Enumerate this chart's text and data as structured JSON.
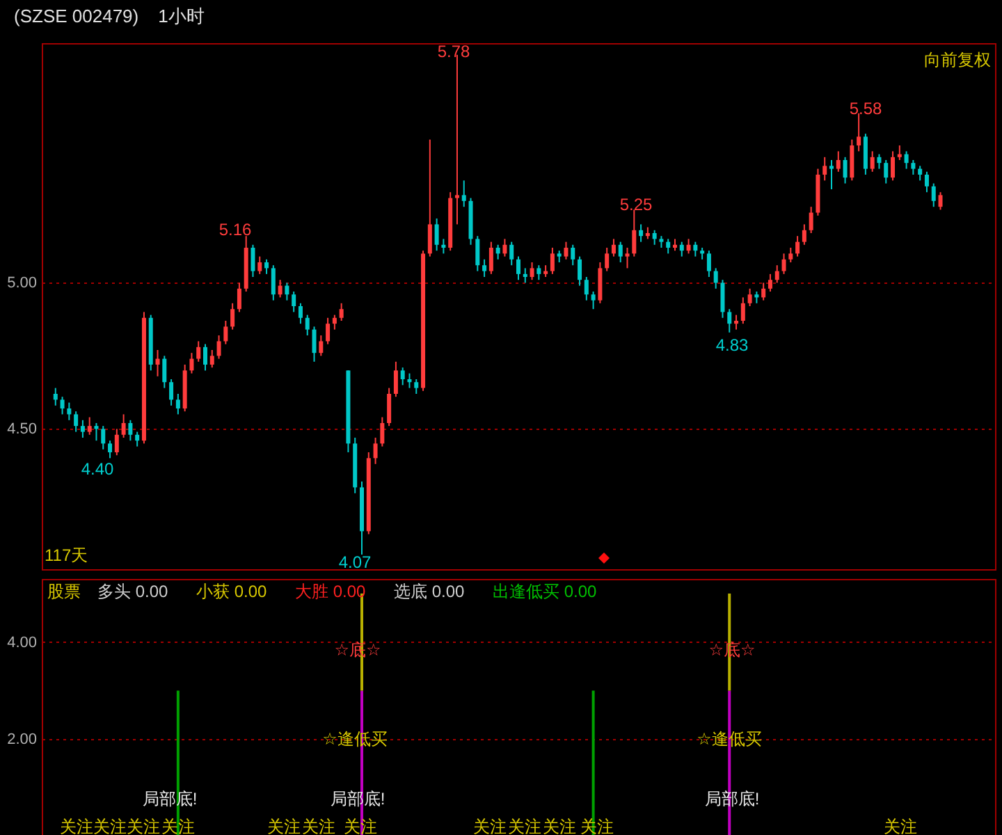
{
  "chart_data": [
    {
      "type": "candlestick",
      "title": "(SZSE 002479)",
      "subtitle": "1小时",
      "categories": [
        null,
        null,
        null,
        null,
        null,
        null,
        null,
        null,
        null,
        null,
        null,
        null,
        null,
        null,
        null,
        null,
        null,
        null,
        null,
        null,
        null,
        null,
        null,
        null,
        null,
        null,
        null,
        null,
        null,
        null,
        null,
        null,
        null,
        null,
        null,
        null,
        null,
        null,
        null,
        null,
        null,
        null,
        null,
        null,
        null,
        null,
        null,
        null,
        null,
        null,
        null,
        null,
        null,
        null,
        null,
        null,
        null,
        null,
        null,
        null,
        null,
        null,
        null,
        null,
        null,
        null,
        null,
        null,
        null,
        null,
        null,
        null,
        null,
        null,
        null,
        null,
        null,
        null,
        null,
        null,
        null,
        null,
        null,
        null,
        null,
        null,
        null,
        null,
        null,
        null,
        null,
        null,
        null,
        null,
        null,
        null,
        null,
        null,
        null,
        null,
        null,
        null,
        null,
        null,
        null,
        null,
        null,
        null,
        null,
        null,
        null,
        null,
        null,
        null,
        null,
        null,
        null,
        null,
        null,
        null,
        null,
        null,
        null,
        null,
        null,
        null,
        null,
        null,
        null,
        null,
        null
      ],
      "ohlc": [
        [
          4.62,
          4.64,
          4.58,
          4.6
        ],
        [
          4.6,
          4.61,
          4.55,
          4.57
        ],
        [
          4.57,
          4.59,
          4.53,
          4.55
        ],
        [
          4.55,
          4.56,
          4.49,
          4.51
        ],
        [
          4.51,
          4.53,
          4.47,
          4.49
        ],
        [
          4.49,
          4.54,
          4.48,
          4.51
        ],
        [
          4.51,
          4.52,
          4.46,
          4.5
        ],
        [
          4.5,
          4.51,
          4.43,
          4.45
        ],
        [
          4.45,
          4.46,
          4.4,
          4.42
        ],
        [
          4.42,
          4.5,
          4.41,
          4.48
        ],
        [
          4.48,
          4.55,
          4.47,
          4.52
        ],
        [
          4.52,
          4.53,
          4.46,
          4.48
        ],
        [
          4.48,
          4.49,
          4.44,
          4.46
        ],
        [
          4.46,
          4.9,
          4.45,
          4.88
        ],
        [
          4.88,
          4.89,
          4.7,
          4.72
        ],
        [
          4.72,
          4.77,
          4.68,
          4.74
        ],
        [
          4.74,
          4.75,
          4.64,
          4.66
        ],
        [
          4.66,
          4.67,
          4.58,
          4.6
        ],
        [
          4.6,
          4.62,
          4.55,
          4.57
        ],
        [
          4.57,
          4.72,
          4.56,
          4.7
        ],
        [
          4.7,
          4.76,
          4.69,
          4.74
        ],
        [
          4.74,
          4.8,
          4.73,
          4.78
        ],
        [
          4.78,
          4.79,
          4.7,
          4.72
        ],
        [
          4.72,
          4.77,
          4.71,
          4.75
        ],
        [
          4.75,
          4.82,
          4.74,
          4.8
        ],
        [
          4.8,
          4.87,
          4.79,
          4.85
        ],
        [
          4.85,
          4.93,
          4.84,
          4.91
        ],
        [
          4.91,
          5.0,
          4.9,
          4.98
        ],
        [
          4.98,
          5.16,
          4.97,
          5.12
        ],
        [
          5.12,
          5.13,
          5.02,
          5.04
        ],
        [
          5.04,
          5.09,
          5.03,
          5.07
        ],
        [
          5.07,
          5.08,
          5.03,
          5.05
        ],
        [
          5.05,
          5.06,
          4.94,
          4.96
        ],
        [
          4.96,
          5.01,
          4.95,
          4.99
        ],
        [
          4.99,
          5.0,
          4.94,
          4.96
        ],
        [
          4.96,
          4.97,
          4.9,
          4.92
        ],
        [
          4.92,
          4.93,
          4.86,
          4.88
        ],
        [
          4.88,
          4.89,
          4.82,
          4.84
        ],
        [
          4.84,
          4.85,
          4.73,
          4.76
        ],
        [
          4.76,
          4.82,
          4.75,
          4.8
        ],
        [
          4.8,
          4.88,
          4.79,
          4.86
        ],
        [
          4.86,
          4.89,
          4.84,
          4.88
        ],
        [
          4.88,
          4.93,
          4.87,
          4.91
        ],
        [
          4.7,
          4.7,
          4.42,
          4.45
        ],
        [
          4.45,
          4.47,
          4.28,
          4.3
        ],
        [
          4.3,
          4.32,
          4.07,
          4.15
        ],
        [
          4.15,
          4.42,
          4.14,
          4.4
        ],
        [
          4.4,
          4.47,
          4.38,
          4.45
        ],
        [
          4.45,
          4.54,
          4.44,
          4.52
        ],
        [
          4.52,
          4.64,
          4.51,
          4.62
        ],
        [
          4.62,
          4.73,
          4.61,
          4.7
        ],
        [
          4.7,
          4.71,
          4.65,
          4.67
        ],
        [
          4.67,
          4.69,
          4.64,
          4.66
        ],
        [
          4.66,
          4.67,
          4.62,
          4.64
        ],
        [
          4.64,
          5.11,
          4.63,
          5.1
        ],
        [
          5.1,
          5.49,
          5.09,
          5.2
        ],
        [
          5.2,
          5.22,
          5.11,
          5.13
        ],
        [
          5.13,
          5.15,
          5.1,
          5.12
        ],
        [
          5.12,
          5.31,
          5.11,
          5.29
        ],
        [
          5.29,
          5.78,
          5.2,
          5.3
        ],
        [
          5.3,
          5.35,
          5.26,
          5.28
        ],
        [
          5.28,
          5.29,
          5.13,
          5.15
        ],
        [
          5.15,
          5.16,
          5.04,
          5.06
        ],
        [
          5.06,
          5.08,
          5.02,
          5.04
        ],
        [
          5.04,
          5.14,
          5.03,
          5.12
        ],
        [
          5.12,
          5.13,
          5.08,
          5.1
        ],
        [
          5.1,
          5.15,
          5.09,
          5.13
        ],
        [
          5.13,
          5.14,
          5.06,
          5.08
        ],
        [
          5.08,
          5.09,
          5.01,
          5.03
        ],
        [
          5.03,
          5.05,
          5.0,
          5.02
        ],
        [
          5.02,
          5.07,
          5.01,
          5.05
        ],
        [
          5.05,
          5.06,
          5.01,
          5.03
        ],
        [
          5.03,
          5.06,
          5.02,
          5.04
        ],
        [
          5.04,
          5.12,
          5.03,
          5.1
        ],
        [
          5.1,
          5.11,
          5.07,
          5.09
        ],
        [
          5.09,
          5.14,
          5.08,
          5.12
        ],
        [
          5.12,
          5.13,
          5.06,
          5.08
        ],
        [
          5.08,
          5.09,
          4.99,
          5.01
        ],
        [
          5.01,
          5.02,
          4.94,
          4.96
        ],
        [
          4.96,
          4.97,
          4.91,
          4.94
        ],
        [
          4.94,
          5.07,
          4.93,
          5.05
        ],
        [
          5.05,
          5.12,
          5.04,
          5.1
        ],
        [
          5.1,
          5.15,
          5.09,
          5.13
        ],
        [
          5.13,
          5.14,
          5.07,
          5.09
        ],
        [
          5.09,
          5.12,
          5.05,
          5.1
        ],
        [
          5.1,
          5.25,
          5.09,
          5.18
        ],
        [
          5.18,
          5.2,
          5.14,
          5.16
        ],
        [
          5.16,
          5.19,
          5.15,
          5.17
        ],
        [
          5.17,
          5.18,
          5.13,
          5.15
        ],
        [
          5.15,
          5.16,
          5.12,
          5.14
        ],
        [
          5.14,
          5.15,
          5.1,
          5.12
        ],
        [
          5.12,
          5.15,
          5.11,
          5.13
        ],
        [
          5.13,
          5.14,
          5.09,
          5.11
        ],
        [
          5.11,
          5.15,
          5.1,
          5.13
        ],
        [
          5.13,
          5.14,
          5.09,
          5.11
        ],
        [
          5.11,
          5.12,
          5.08,
          5.1
        ],
        [
          5.1,
          5.11,
          5.02,
          5.04
        ],
        [
          5.04,
          5.05,
          4.98,
          5.0
        ],
        [
          5.0,
          5.01,
          4.88,
          4.9
        ],
        [
          4.9,
          4.91,
          4.83,
          4.86
        ],
        [
          4.86,
          4.89,
          4.84,
          4.87
        ],
        [
          4.87,
          4.95,
          4.86,
          4.93
        ],
        [
          4.93,
          4.98,
          4.92,
          4.96
        ],
        [
          4.96,
          4.97,
          4.93,
          4.95
        ],
        [
          4.95,
          5.0,
          4.94,
          4.98
        ],
        [
          4.98,
          5.03,
          4.97,
          5.01
        ],
        [
          5.01,
          5.06,
          5.0,
          5.04
        ],
        [
          5.04,
          5.1,
          5.03,
          5.08
        ],
        [
          5.08,
          5.12,
          5.07,
          5.1
        ],
        [
          5.1,
          5.16,
          5.09,
          5.14
        ],
        [
          5.14,
          5.2,
          5.13,
          5.18
        ],
        [
          5.18,
          5.26,
          5.17,
          5.24
        ],
        [
          5.24,
          5.39,
          5.23,
          5.37
        ],
        [
          5.37,
          5.43,
          5.35,
          5.4
        ],
        [
          5.4,
          5.42,
          5.32,
          5.39
        ],
        [
          5.39,
          5.45,
          5.38,
          5.42
        ],
        [
          5.42,
          5.43,
          5.34,
          5.36
        ],
        [
          5.36,
          5.49,
          5.35,
          5.47
        ],
        [
          5.47,
          5.58,
          5.45,
          5.5
        ],
        [
          5.5,
          5.51,
          5.37,
          5.39
        ],
        [
          5.39,
          5.45,
          5.38,
          5.43
        ],
        [
          5.43,
          5.44,
          5.39,
          5.41
        ],
        [
          5.41,
          5.42,
          5.34,
          5.36
        ],
        [
          5.36,
          5.45,
          5.35,
          5.43
        ],
        [
          5.43,
          5.47,
          5.42,
          5.44
        ],
        [
          5.44,
          5.45,
          5.39,
          5.41
        ],
        [
          5.41,
          5.42,
          5.37,
          5.39
        ],
        [
          5.39,
          5.4,
          5.35,
          5.37
        ],
        [
          5.37,
          5.38,
          5.31,
          5.33
        ],
        [
          5.33,
          5.34,
          5.26,
          5.28
        ],
        [
          5.26,
          5.31,
          5.25,
          5.3
        ]
      ],
      "ylim": [
        4.02,
        5.82
      ],
      "yticks": [
        {
          "value": 4.5,
          "label": "4.50"
        },
        {
          "value": 5,
          "label": "5.00"
        }
      ],
      "grid": "y",
      "tick_labels": "y",
      "annotations": [
        "117天",
        "向前复权",
        "4.40",
        "5.16",
        "4.07",
        "5.78",
        "5.25",
        "4.83",
        "5.58"
      ]
    },
    {
      "type": "bar",
      "stacked": true,
      "categories": [
        null,
        null,
        null,
        null,
        null,
        null,
        null,
        null,
        null,
        null,
        null,
        null,
        null,
        null,
        null,
        null,
        null,
        null,
        null,
        null,
        null,
        null,
        null,
        null,
        null,
        null,
        null,
        null,
        null,
        null,
        null,
        null,
        null,
        null,
        null,
        null,
        null,
        null,
        null,
        null,
        null,
        null,
        null,
        null,
        null,
        null,
        null,
        null,
        null,
        null,
        null,
        null,
        null,
        null,
        null,
        null,
        null,
        null,
        null,
        null,
        null,
        null,
        null,
        null,
        null,
        null,
        null,
        null,
        null,
        null,
        null,
        null,
        null,
        null,
        null,
        null,
        null,
        null,
        null,
        null,
        null,
        null,
        null,
        null,
        null,
        null,
        null,
        null,
        null,
        null,
        null,
        null,
        null,
        null,
        null,
        null,
        null,
        null,
        null,
        null,
        null,
        null,
        null,
        null,
        null,
        null,
        null,
        null,
        null,
        null,
        null,
        null,
        null,
        null,
        null,
        null,
        null,
        null,
        null,
        null,
        null,
        null,
        null,
        null,
        null,
        null,
        null,
        null,
        null,
        null,
        null
      ],
      "series": [
        {
          "color": "#00a000",
          "values": [
            null,
            null,
            null,
            null,
            null,
            null,
            null,
            null,
            null,
            null,
            null,
            null,
            null,
            null,
            null,
            null,
            null,
            null,
            3,
            null,
            null,
            null,
            null,
            null,
            null,
            null,
            null,
            null,
            null,
            null,
            null,
            null,
            null,
            null,
            null,
            null,
            null,
            null,
            null,
            null,
            null,
            null,
            null,
            null,
            null,
            null,
            null,
            null,
            null,
            null,
            null,
            null,
            null,
            null,
            null,
            null,
            null,
            null,
            null,
            null,
            null,
            null,
            null,
            null,
            null,
            null,
            null,
            null,
            null,
            null,
            null,
            null,
            null,
            null,
            null,
            null,
            null,
            null,
            null,
            3,
            null,
            null,
            null,
            null,
            null,
            null,
            null,
            null,
            null,
            null,
            null,
            null,
            null,
            null,
            null,
            null,
            null,
            null,
            null,
            null,
            null,
            null,
            null,
            null,
            null,
            null,
            null,
            null,
            null,
            null,
            null,
            null,
            null,
            null,
            null,
            null,
            null,
            null,
            null,
            null,
            null,
            null,
            null,
            null,
            null,
            null,
            null,
            null,
            null,
            null,
            null
          ]
        },
        {
          "color": "#c000c0",
          "values": [
            null,
            null,
            null,
            null,
            null,
            null,
            null,
            null,
            null,
            null,
            null,
            null,
            null,
            null,
            null,
            null,
            null,
            null,
            null,
            null,
            null,
            null,
            null,
            null,
            null,
            null,
            null,
            null,
            null,
            null,
            null,
            null,
            null,
            null,
            null,
            null,
            null,
            null,
            null,
            null,
            null,
            null,
            null,
            null,
            null,
            3,
            null,
            null,
            null,
            null,
            null,
            null,
            null,
            null,
            null,
            null,
            null,
            null,
            null,
            null,
            null,
            null,
            null,
            null,
            null,
            null,
            null,
            null,
            null,
            null,
            null,
            null,
            null,
            null,
            null,
            null,
            null,
            null,
            null,
            null,
            null,
            null,
            null,
            null,
            null,
            null,
            null,
            null,
            null,
            null,
            null,
            null,
            null,
            null,
            null,
            null,
            null,
            null,
            null,
            3,
            null,
            null,
            null,
            null,
            null,
            null,
            null,
            null,
            null,
            null,
            null,
            null,
            null,
            null,
            null,
            null,
            null,
            null,
            null,
            null,
            null,
            null,
            null,
            null,
            null,
            null,
            null,
            null,
            null,
            null,
            null
          ]
        },
        {
          "color": "#b8b000",
          "values": [
            null,
            null,
            null,
            null,
            null,
            null,
            null,
            null,
            null,
            null,
            null,
            null,
            null,
            null,
            null,
            null,
            null,
            null,
            null,
            null,
            null,
            null,
            null,
            null,
            null,
            null,
            null,
            null,
            null,
            null,
            null,
            null,
            null,
            null,
            null,
            null,
            null,
            null,
            null,
            null,
            null,
            null,
            null,
            null,
            null,
            2,
            null,
            null,
            null,
            null,
            null,
            null,
            null,
            null,
            null,
            null,
            null,
            null,
            null,
            null,
            null,
            null,
            null,
            null,
            null,
            null,
            null,
            null,
            null,
            null,
            null,
            null,
            null,
            null,
            null,
            null,
            null,
            null,
            null,
            null,
            null,
            null,
            null,
            null,
            null,
            null,
            null,
            null,
            null,
            null,
            null,
            null,
            null,
            null,
            null,
            null,
            null,
            null,
            null,
            2,
            null,
            null,
            null,
            null,
            null,
            null,
            null,
            null,
            null,
            null,
            null,
            null,
            null,
            null,
            null,
            null,
            null,
            null,
            null,
            null,
            null,
            null,
            null,
            null,
            null,
            null,
            null,
            null,
            null,
            null,
            null
          ]
        }
      ],
      "ylim": [
        0,
        5.3
      ],
      "yticks": [
        {
          "value": 2,
          "label": "2.00"
        },
        {
          "value": 4,
          "label": "4.00"
        }
      ],
      "grid": "y",
      "tick_labels": "y",
      "annotations": [
        "股票",
        "多头 0.00",
        "小获 0.00",
        "大胜 0.00",
        "选底 0.00",
        "出逢低买 0.00",
        "☆底☆",
        "☆底☆",
        "☆逢低买",
        "☆逢低买",
        "局部底!",
        "局部底!",
        "局部底!",
        "关注",
        "关注",
        "关注",
        "关注",
        "关注",
        "关注",
        "关注",
        "关注",
        "关注",
        "关注",
        "关注",
        "关注"
      ]
    }
  ]
}
